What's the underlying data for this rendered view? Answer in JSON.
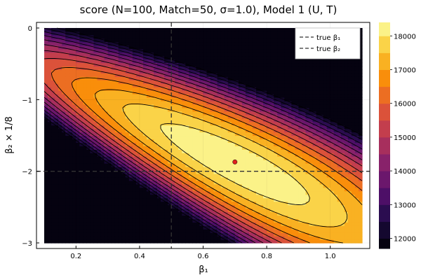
{
  "chart_data": {
    "type": "heatmap",
    "title": "score (N=100, Match=50, σ=1.0), Model 1 (U, T)",
    "xlabel": "β₁",
    "ylabel": "β₂ × 1/8",
    "xlim": [
      0.1,
      1.1
    ],
    "ylim": [
      -3.0,
      0.0
    ],
    "x_ticks": [
      0.2,
      0.4,
      0.6,
      0.8,
      1.0
    ],
    "x_tick_labels": [
      "0.2",
      "0.4",
      "0.6",
      "0.8",
      "1.0"
    ],
    "y_ticks": [
      0,
      -1,
      -2,
      -3
    ],
    "y_tick_labels": [
      "0",
      "−1",
      "−2",
      "−3"
    ],
    "grid": true,
    "colormap": "inferno",
    "colorbar": {
      "min": 11700,
      "max": 18400,
      "levels": [
        12000,
        12500,
        13000,
        13500,
        14000,
        14500,
        15000,
        15500,
        16000,
        16500,
        17000,
        17500,
        18000
      ],
      "tick_values": [
        12000,
        13000,
        14000,
        15000,
        16000,
        17000,
        18000
      ],
      "tick_labels": [
        "12000",
        "13000",
        "14000",
        "15000",
        "16000",
        "17000",
        "18000"
      ]
    },
    "contour_model": {
      "peak": {
        "x": 0.7,
        "y": -1.87,
        "value": 18400
      },
      "ridge_slope": -2.15,
      "ridge_offset_at_x": 0.1,
      "ridge_offset_y": -0.58,
      "width": 0.12,
      "decay": 5800,
      "along_decay": 1800,
      "base": 11700
    },
    "reference_lines": [
      {
        "axis": "x",
        "value": 0.5,
        "label": "true β₁",
        "style": "dashed"
      },
      {
        "axis": "y",
        "value": -2.0,
        "label": "true β₂",
        "style": "dashed"
      }
    ],
    "series": [
      {
        "name": "true β₁",
        "values": [
          0.5
        ]
      },
      {
        "name": "true β₂",
        "values": [
          -2.0
        ]
      }
    ],
    "points": [
      {
        "x": 0.7,
        "y": -1.87,
        "color": "#e0201e"
      }
    ],
    "legend_position": "top-right"
  }
}
